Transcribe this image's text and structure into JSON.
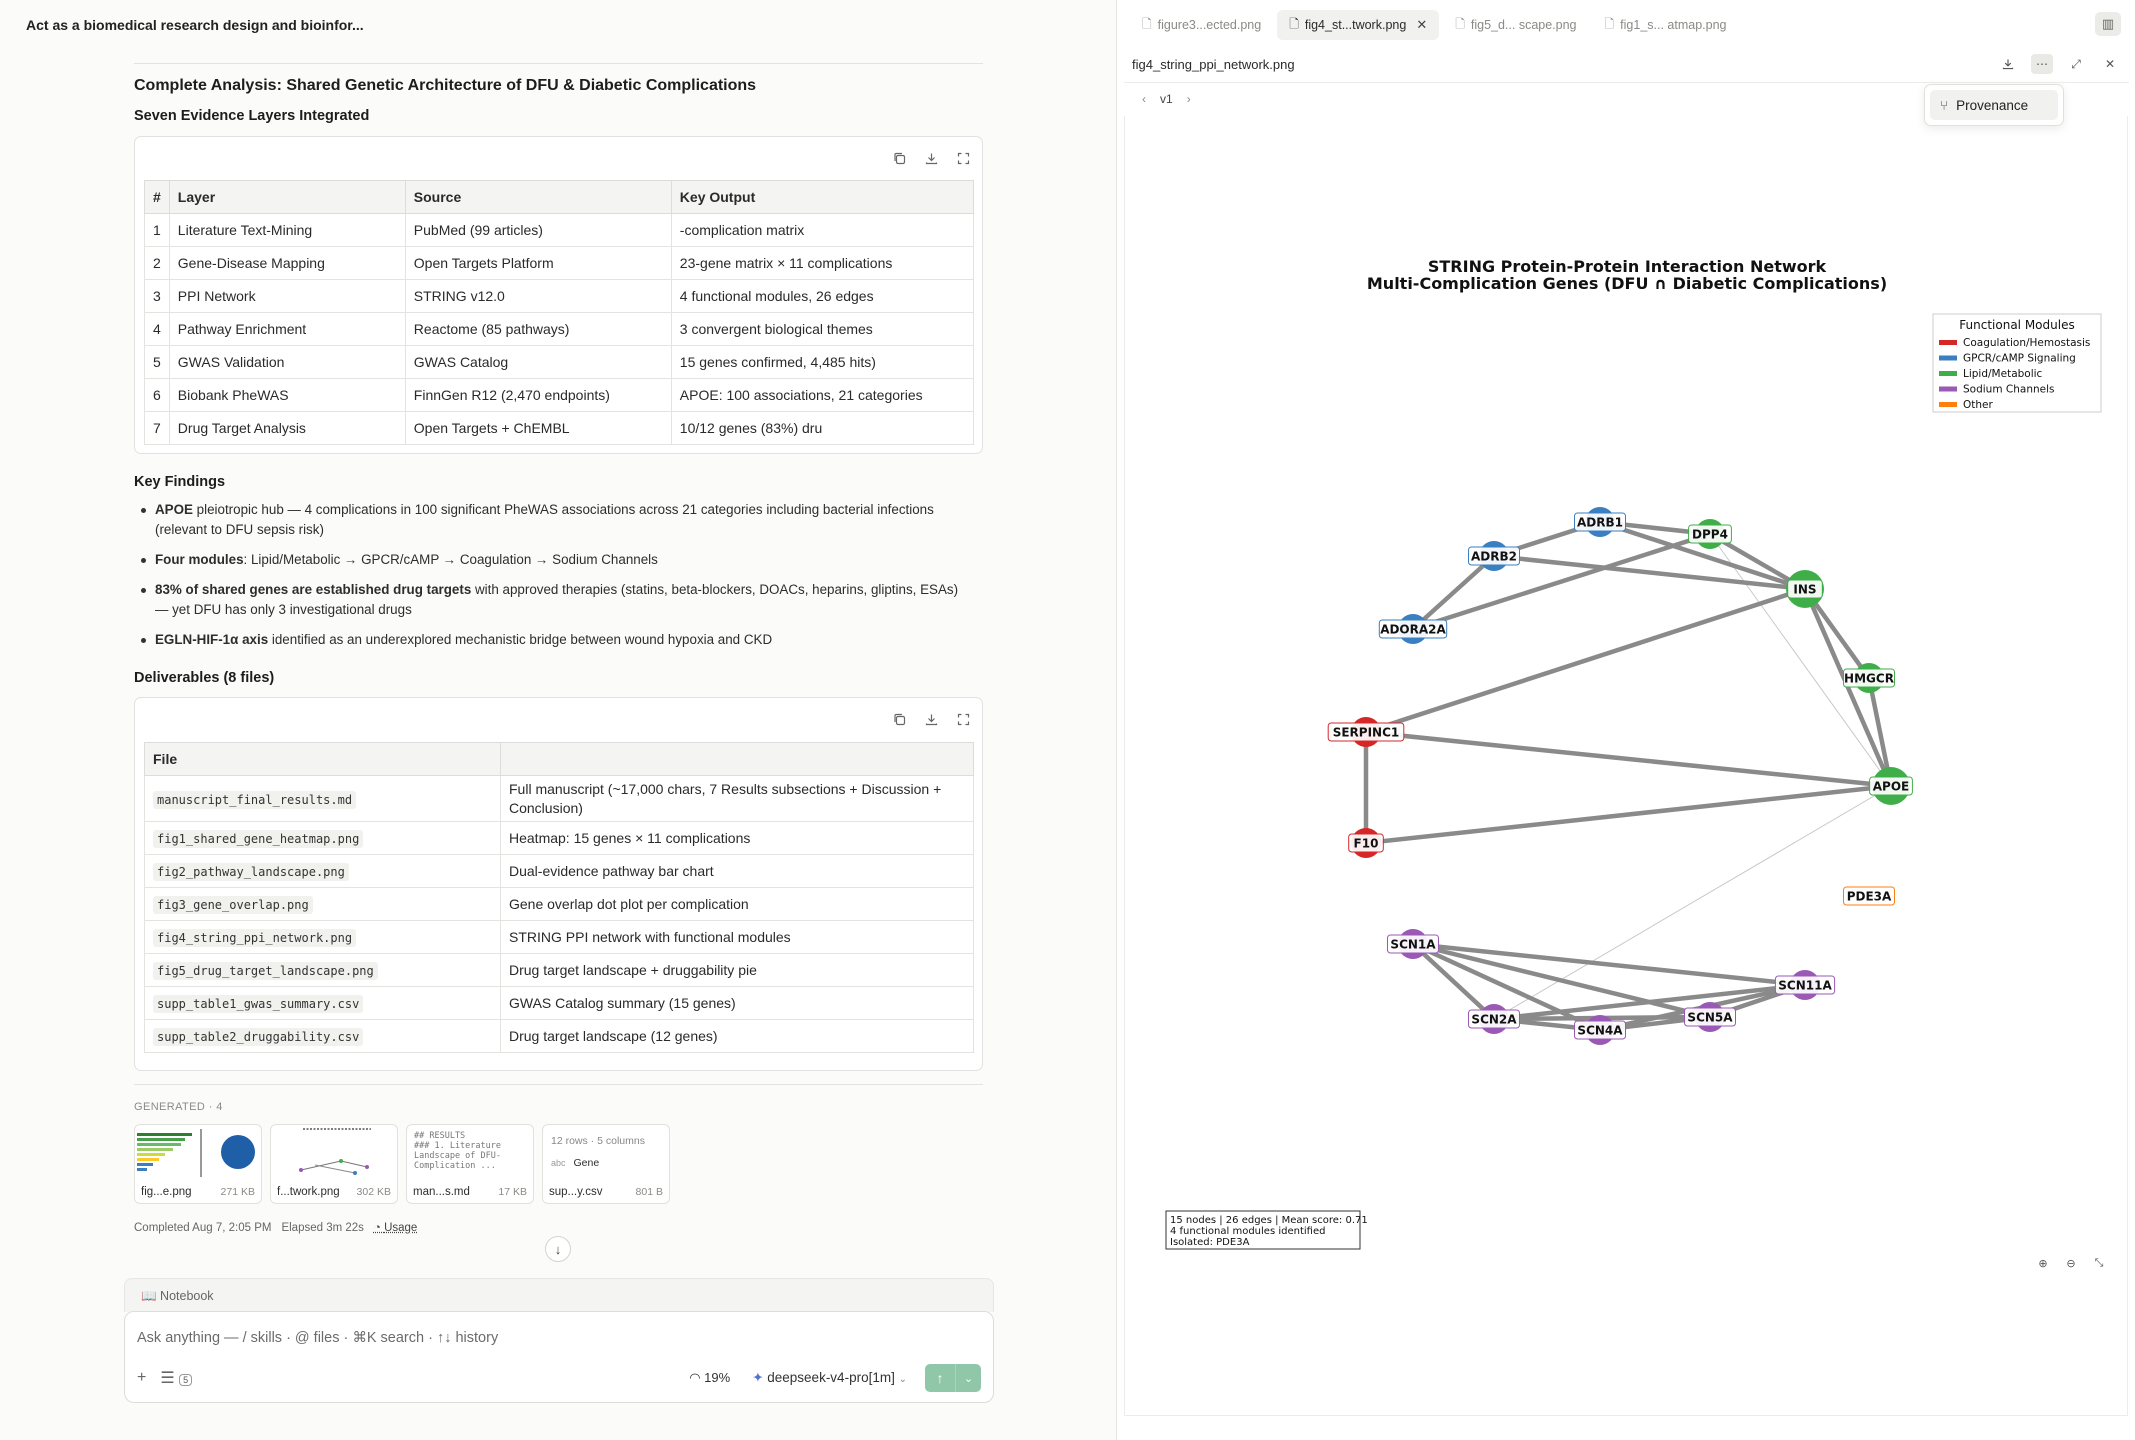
{
  "chat": {
    "title": "Act as a biomedical research design and bioinfor..."
  },
  "report": {
    "heading": "Complete Analysis: Shared Genetic Architecture of DFU & Diabetic Complications",
    "layers_heading": "Seven Evidence Layers Integrated",
    "layers_table": {
      "headers": [
        "#",
        "Layer",
        "Source",
        "Key Output"
      ],
      "rows": [
        [
          "1",
          "Literature Text-Mining",
          "PubMed (99 articles)",
          "-complication matrix"
        ],
        [
          "2",
          "Gene-Disease Mapping",
          "Open Targets Platform",
          "23-gene matrix × 11 complications"
        ],
        [
          "3",
          "PPI Network",
          "STRING v12.0",
          "4 functional modules, 26 edges"
        ],
        [
          "4",
          "Pathway Enrichment",
          "Reactome (85 pathways)",
          "3 convergent biological themes"
        ],
        [
          "5",
          "GWAS Validation",
          "GWAS Catalog",
          "15 genes confirmed, 4,485 hits)"
        ],
        [
          "6",
          "Biobank PheWAS",
          "FinnGen R12 (2,470 endpoints)",
          "APOE: 100 associations, 21 categories"
        ],
        [
          "7",
          "Drug Target Analysis",
          "Open Targets + ChEMBL",
          "10/12 genes (83%) dru"
        ]
      ]
    },
    "findings_heading": "Key Findings",
    "findings": [
      {
        "bold": "APOE",
        "text": " pleiotropic hub — 4 complications in 100 significant PheWAS associations across 21 categories including bacterial infections (relevant to DFU sepsis risk)"
      },
      {
        "bold": "Four modules",
        "text": ": Lipid/Metabolic → GPCR/cAMP → Coagulation → Sodium Channels"
      },
      {
        "bold": "83% of shared genes are established drug targets",
        "text": " with approved therapies (statins, beta-blockers, DOACs, heparins, gliptins, ESAs) — yet DFU has only 3 investigational drugs"
      },
      {
        "bold": "EGLN-HIF-1α axis",
        "text": " identified as an underexplored mechanistic bridge between wound hypoxia and CKD"
      }
    ],
    "deliverables_heading": "Deliverables (8 files)",
    "files_table": {
      "headers": [
        "File",
        ""
      ],
      "rows": [
        [
          "manuscript_final_results.md",
          "Full manuscript (~17,000 chars, 7 Results subsections + Discussion + Conclusion)"
        ],
        [
          "fig1_shared_gene_heatmap.png",
          "Heatmap: 15 genes × 11 complications"
        ],
        [
          "fig2_pathway_landscape.png",
          "Dual-evidence pathway bar chart"
        ],
        [
          "fig3_gene_overlap.png",
          "Gene overlap dot plot per complication"
        ],
        [
          "fig4_string_ppi_network.png",
          "STRING PPI network with functional modules"
        ],
        [
          "fig5_drug_target_landscape.png",
          "Drug target landscape + druggability pie"
        ],
        [
          "supp_table1_gwas_summary.csv",
          "GWAS Catalog summary (15 genes)"
        ],
        [
          "supp_table2_druggability.csv",
          "Drug target landscape (12 genes)"
        ]
      ]
    }
  },
  "generated": {
    "label": "GENERATED · 4",
    "items": [
      {
        "name": "fig...e.png",
        "size": "271 KB"
      },
      {
        "name": "f...twork.png",
        "size": "302 KB"
      },
      {
        "name": "man...s.md",
        "size": "17 KB",
        "preview": "## RESULTS\n### 1. Literature\nLandscape of DFU-\nComplication ..."
      },
      {
        "name": "sup...y.csv",
        "size": "801 B",
        "rows_label": "12 rows · 5 columns",
        "col_type": "abc",
        "col_name": "Gene"
      }
    ]
  },
  "run_meta": {
    "completed": "Completed Aug 7, 2:05 PM",
    "elapsed": "Elapsed 3m 22s",
    "usage": "Usage"
  },
  "notebook": {
    "label": "Notebook"
  },
  "composer": {
    "placeholder": "Ask anything — / skills · @ files · ⌘K search · ↑↓ history",
    "tasks_count": "5",
    "context_pct": "19%",
    "model": "deepseek-v4-pro[1m]"
  },
  "viewer": {
    "tabs": [
      {
        "label": "figure3...ected.png",
        "active": false
      },
      {
        "label": "fig4_st...twork.png",
        "active": true
      },
      {
        "label": "fig5_d... scape.png",
        "active": false
      },
      {
        "label": "fig1_s... atmap.png",
        "active": false
      }
    ],
    "file_name": "fig4_string_ppi_network.png",
    "version": "v1",
    "menu_item": "Provenance"
  },
  "network": {
    "title_line1": "STRING Protein-Protein Interaction Network",
    "title_line2": "Multi-Complication Genes (DFU ∩ Diabetic Complications)",
    "legend_title": "Functional Modules",
    "legend": [
      {
        "label": "Coagulation/Hemostasis",
        "color": "#d62728"
      },
      {
        "label": "GPCR/cAMP Signaling",
        "color": "#3a7fc1"
      },
      {
        "label": "Lipid/Metabolic",
        "color": "#3fae49"
      },
      {
        "label": "Sodium Channels",
        "color": "#9b59b6"
      },
      {
        "label": "Other",
        "color": "#ff7f0e"
      }
    ],
    "nodes": [
      {
        "id": "ADRB1",
        "module": "GPCR/cAMP Signaling"
      },
      {
        "id": "ADRB2",
        "module": "GPCR/cAMP Signaling"
      },
      {
        "id": "ADORA2A",
        "module": "GPCR/cAMP Signaling"
      },
      {
        "id": "DPP4",
        "module": "Lipid/Metabolic"
      },
      {
        "id": "INS",
        "module": "Lipid/Metabolic"
      },
      {
        "id": "HMGCR",
        "module": "Lipid/Metabolic"
      },
      {
        "id": "APOE",
        "module": "Lipid/Metabolic"
      },
      {
        "id": "SERPINC1",
        "module": "Coagulation/Hemostasis"
      },
      {
        "id": "F10",
        "module": "Coagulation/Hemostasis"
      },
      {
        "id": "PDE3A",
        "module": "Other"
      },
      {
        "id": "SCN1A",
        "module": "Sodium Channels"
      },
      {
        "id": "SCN2A",
        "module": "Sodium Channels"
      },
      {
        "id": "SCN4A",
        "module": "Sodium Channels"
      },
      {
        "id": "SCN5A",
        "module": "Sodium Channels"
      },
      {
        "id": "SCN11A",
        "module": "Sodium Channels"
      }
    ],
    "stats": [
      "15 nodes | 26 edges | Mean score: 0.71",
      "4 functional modules identified",
      "Isolated: PDE3A"
    ]
  }
}
